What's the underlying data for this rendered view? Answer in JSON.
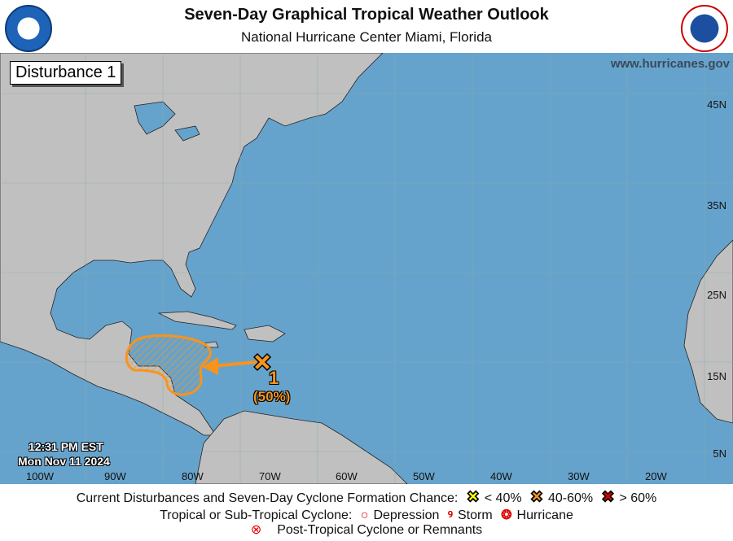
{
  "header": {
    "title": "Seven-Day Graphical Tropical Weather Outlook",
    "subtitle": "National Hurricane Center  Miami, Florida",
    "left_logo": "noaa-logo",
    "right_logo": "national-weather-service-logo"
  },
  "map": {
    "box_label": "Disturbance 1",
    "website": "www.hurricanes.gov",
    "issued_time": "12:31 PM EST",
    "issued_date": "Mon Nov 11 2024",
    "lat_labels": [
      "45N",
      "35N",
      "25N",
      "15N",
      "5N"
    ],
    "lon_labels": [
      "100W",
      "90W",
      "80W",
      "70W",
      "60W",
      "50W",
      "40W",
      "30W",
      "20W"
    ],
    "colors": {
      "ocean": "#66a3cc",
      "land": "#c0c0c0",
      "disturbance": "#f7941d"
    },
    "disturbances": [
      {
        "id": "1",
        "chance": "(50%)",
        "category": "40-60%",
        "motion": "west"
      }
    ]
  },
  "legend": {
    "row1_label": "Current Disturbances and Seven-Day Cyclone Formation Chance:",
    "low": "< 40%",
    "medium": "40-60%",
    "high": "> 60%",
    "row2_label": "Tropical or Sub-Tropical Cyclone:",
    "depression": "Depression",
    "storm": "Storm",
    "hurricane": "Hurricane",
    "row3_label": "Post-Tropical Cyclone or Remnants",
    "colors": {
      "low": "#ffff00",
      "medium": "#f7941d",
      "high": "#e00000",
      "cyclone": "#e00000"
    }
  }
}
